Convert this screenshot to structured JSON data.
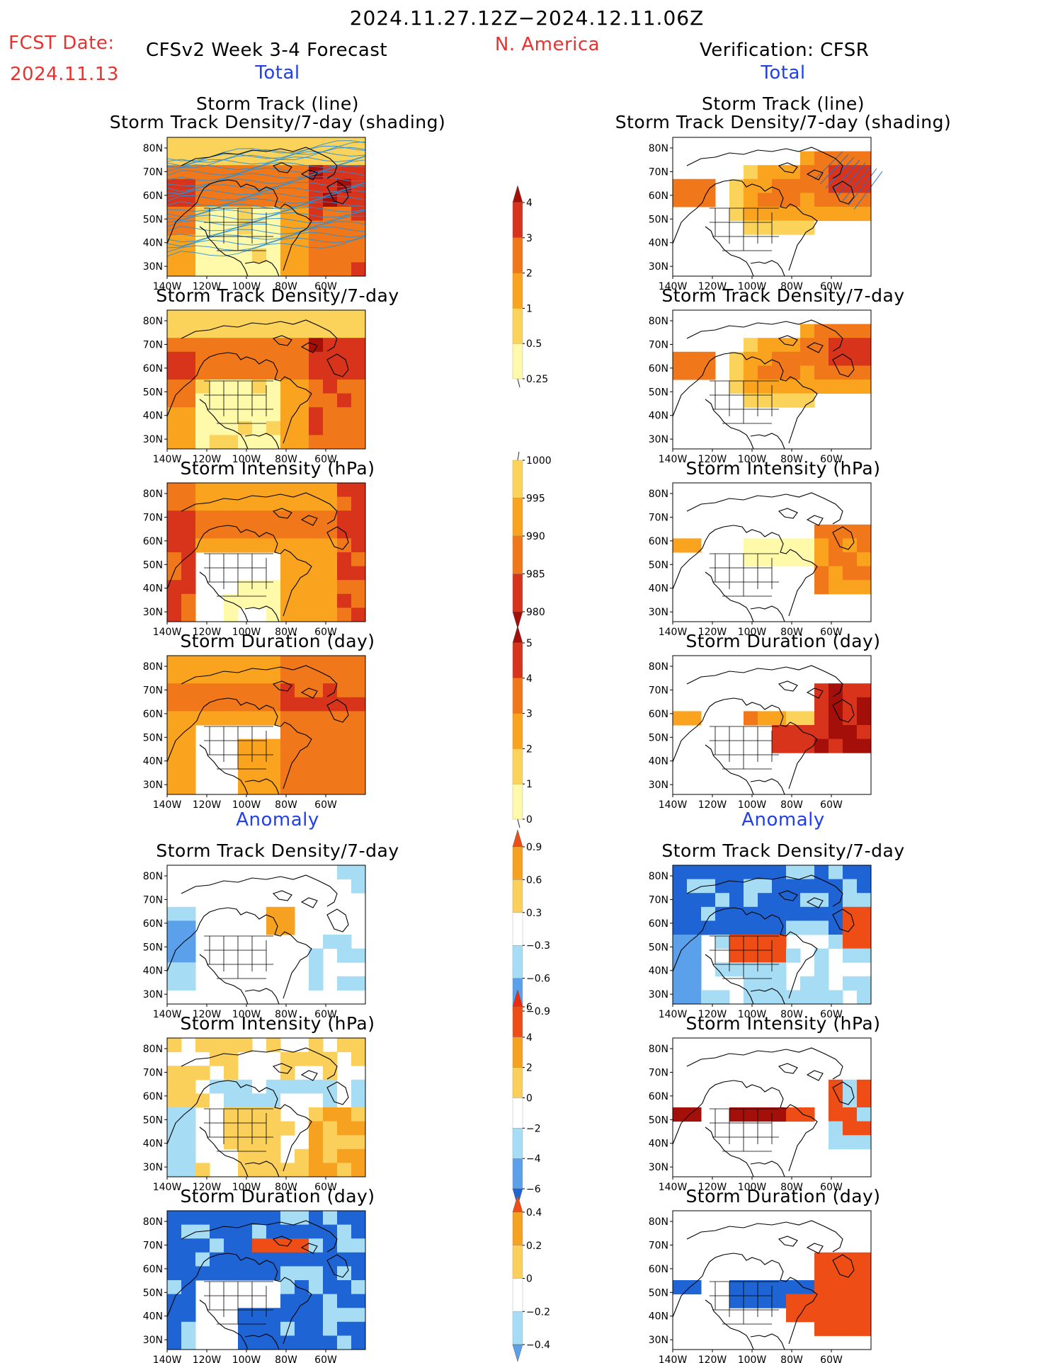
{
  "header": {
    "period": "2024.11.27.12Z−2024.12.11.06Z",
    "fcst_label": "FCST Date:",
    "fcst_date": "2024.11.13",
    "model": "CFSv2 Week 3-4 Forecast",
    "region": "N. America",
    "verification": "Verification: CFSR"
  },
  "sections": {
    "total": "Total",
    "anomaly": "Anomaly"
  },
  "panel_titles": {
    "track_line": "Storm Track (line)",
    "track_shading": "Storm Track Density/7-day (shading)",
    "density": "Storm Track Density/7-day",
    "intensity": "Storm Intensity (hPa)",
    "duration": "Storm Duration (day)"
  },
  "axes": {
    "lat_ticks": [
      "80N",
      "70N",
      "60N",
      "50N",
      "40N",
      "30N"
    ],
    "lon_ticks": [
      "140W",
      "120W",
      "100W",
      "80W",
      "60W"
    ]
  },
  "colorbars": {
    "density_total": [
      "4",
      "3",
      "2",
      "1",
      "0.5",
      "0.25"
    ],
    "intensity_total": [
      "1000",
      "995",
      "990",
      "985",
      "980"
    ],
    "duration_total": [
      "5",
      "4",
      "3",
      "2",
      "1",
      "0"
    ],
    "density_anom": [
      "0.9",
      "0.6",
      "0.3",
      "−0.3",
      "−0.6",
      "−0.9"
    ],
    "intensity_anom": [
      "6",
      "4",
      "2",
      "0",
      "−2",
      "−4",
      "−6"
    ],
    "duration_anom": [
      "0.4",
      "0.2",
      "0",
      "−0.2",
      "−0.4"
    ]
  },
  "colors": {
    "seq": [
      "#fffaaa",
      "#fbd35a",
      "#f9a31f",
      "#f0781a",
      "#d8331b",
      "#a50f0a"
    ],
    "div": [
      "#1f64d4",
      "#5aa0ea",
      "#a6dcf4",
      "#ffffff",
      "#fad05a",
      "#f6a11f",
      "#ee4e16"
    ],
    "red_text": "#e8322f",
    "blue_text": "#1f3ff0"
  }
}
